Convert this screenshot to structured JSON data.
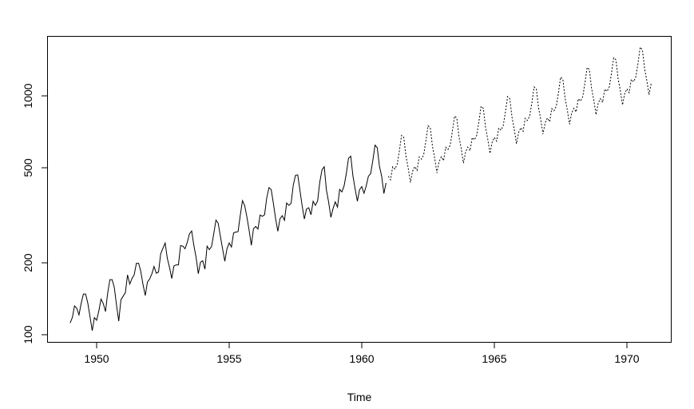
{
  "chart_data": {
    "type": "line",
    "title": "",
    "xlabel": "Time",
    "ylabel": "",
    "y_scale": "log",
    "xlim": [
      1948.2,
      1971.6
    ],
    "ylim": [
      95,
      1750
    ],
    "x_ticks": [
      "1950",
      "1955",
      "1960",
      "1965",
      "1970"
    ],
    "y_ticks": [
      "100",
      "200",
      "500",
      "1000"
    ],
    "series": [
      {
        "name": "observed",
        "style": "solid",
        "start": 1949,
        "frequency": 12,
        "values": [
          112,
          118,
          132,
          129,
          121,
          135,
          148,
          148,
          136,
          119,
          104,
          118,
          115,
          126,
          141,
          135,
          125,
          149,
          170,
          170,
          158,
          133,
          114,
          140,
          145,
          150,
          178,
          163,
          172,
          178,
          199,
          199,
          184,
          162,
          146,
          166,
          171,
          180,
          193,
          181,
          183,
          218,
          230,
          242,
          209,
          191,
          172,
          194,
          196,
          196,
          236,
          235,
          229,
          243,
          264,
          272,
          237,
          211,
          180,
          201,
          204,
          188,
          235,
          227,
          234,
          264,
          302,
          293,
          259,
          229,
          203,
          229,
          242,
          233,
          267,
          269,
          270,
          315,
          364,
          347,
          312,
          274,
          237,
          278,
          284,
          277,
          317,
          313,
          318,
          374,
          413,
          405,
          355,
          306,
          271,
          306,
          315,
          301,
          356,
          348,
          355,
          422,
          465,
          467,
          404,
          347,
          305,
          336,
          340,
          318,
          362,
          348,
          363,
          435,
          491,
          505,
          404,
          359,
          310,
          337,
          360,
          342,
          406,
          396,
          420,
          472,
          548,
          559,
          463,
          407,
          362,
          405,
          417,
          391,
          419,
          461,
          472,
          535,
          622,
          606,
          508,
          461,
          390,
          432
        ]
      },
      {
        "name": "forecast",
        "style": "dotted",
        "start": 1961,
        "frequency": 12,
        "values": [
          461,
          445,
          505,
          494,
          516,
          587,
          683,
          670,
          560,
          500,
          434,
          483,
          506,
          488,
          555,
          543,
          567,
          645,
          750,
          735,
          615,
          549,
          476,
          530,
          556,
          536,
          609,
          596,
          622,
          708,
          823,
          807,
          675,
          602,
          523,
          582,
          610,
          589,
          669,
          654,
          683,
          778,
          904,
          887,
          741,
          661,
          574,
          639,
          670,
          646,
          734,
          718,
          750,
          854,
          993,
          973,
          814,
          726,
          630,
          702,
          736,
          710,
          806,
          789,
          824,
          937,
          1090,
          1069,
          894,
          797,
          692,
          771,
          808,
          779,
          885,
          866,
          904,
          1029,
          1197,
          1174,
          981,
          875,
          760,
          847,
          887,
          856,
          972,
          951,
          993,
          1130,
          1314,
          1289,
          1077,
          961,
          834,
          930,
          974,
          939,
          1067,
          1044,
          1090,
          1241,
          1443,
          1415,
          1183,
          1055,
          916,
          1021,
          1070,
          1031,
          1172,
          1146,
          1197,
          1363,
          1600,
          1560,
          1299,
          1159,
          1010,
          1130
        ]
      }
    ],
    "grid": false,
    "legend": "none"
  }
}
